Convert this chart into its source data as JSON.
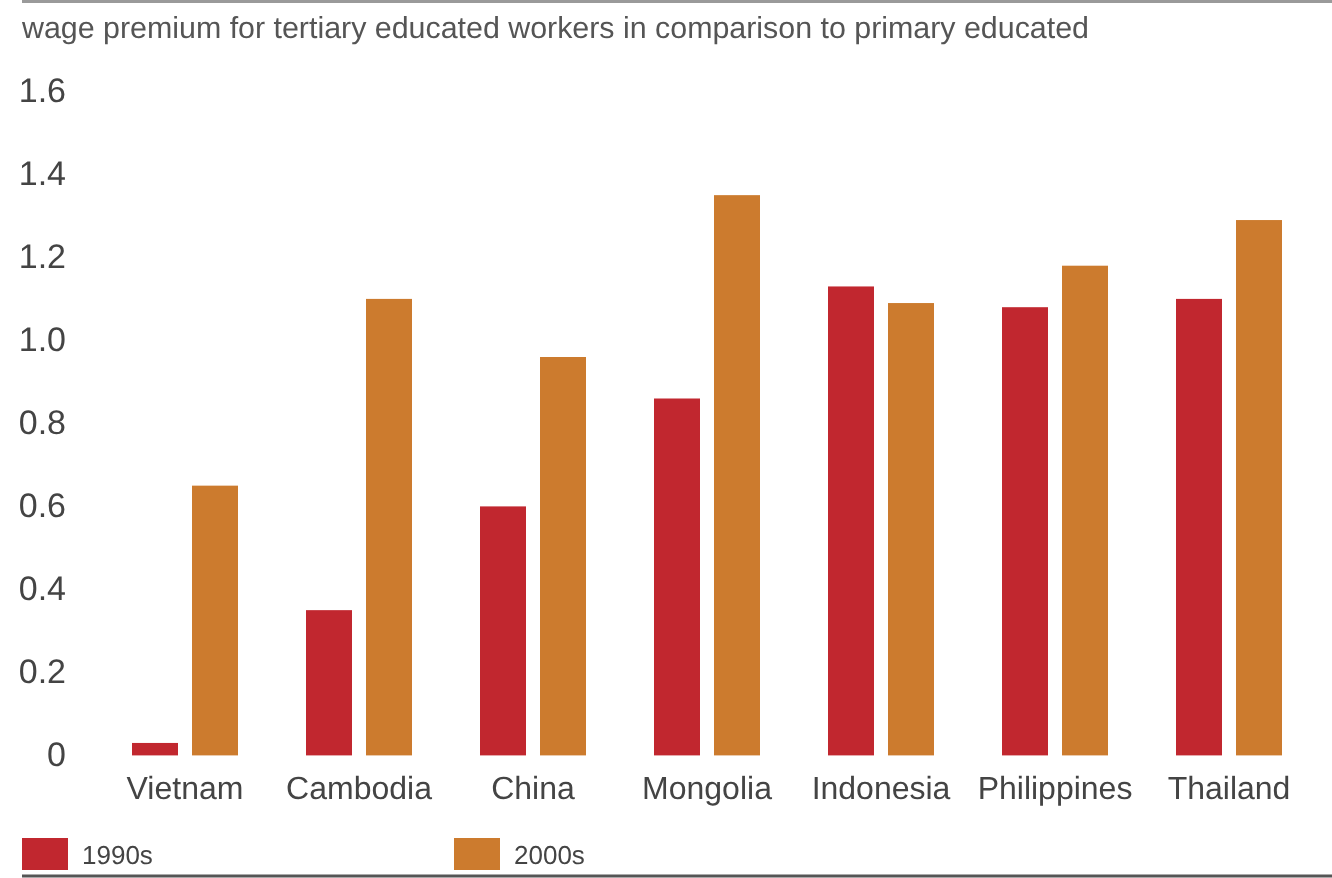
{
  "chart_data": {
    "type": "bar",
    "title": "wage premium for tertiary educated workers in comparison to primary educated",
    "categories": [
      "Vietnam",
      "Cambodia",
      "China",
      "Mongolia",
      "Indonesia",
      "Philippines",
      "Thailand"
    ],
    "series": [
      {
        "name": "1990s",
        "color": "#c1272f",
        "values": [
          0.03,
          0.35,
          0.6,
          0.86,
          1.13,
          1.08,
          1.1
        ]
      },
      {
        "name": "2000s",
        "color": "#cc7b2e",
        "values": [
          0.65,
          1.1,
          0.96,
          1.35,
          1.09,
          1.18,
          1.29
        ]
      }
    ],
    "ylim": [
      0,
      1.6
    ],
    "yticks": [
      0,
      0.2,
      0.4,
      0.6,
      0.8,
      {
        "value": 1,
        "label": "1.0"
      },
      1.2,
      1.4,
      1.6
    ],
    "legend": "bottom"
  }
}
